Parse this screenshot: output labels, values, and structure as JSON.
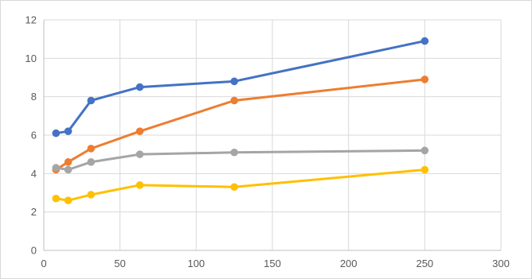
{
  "chart_data": {
    "type": "line",
    "title": "",
    "xlabel": "",
    "ylabel": "",
    "xlim": [
      0,
      300
    ],
    "ylim": [
      0,
      12
    ],
    "xticks": [
      0,
      50,
      100,
      150,
      200,
      250,
      300
    ],
    "yticks": [
      0,
      2,
      4,
      6,
      8,
      10,
      12
    ],
    "grid": true,
    "legend": "none",
    "x": [
      8,
      16,
      31,
      63,
      125,
      250
    ],
    "series": [
      {
        "color": "#4472C4",
        "values": [
          6.1,
          6.2,
          7.8,
          8.5,
          8.8,
          10.9
        ]
      },
      {
        "color": "#ED7D31",
        "values": [
          4.2,
          4.6,
          5.3,
          6.2,
          7.8,
          8.9
        ]
      },
      {
        "color": "#A5A5A5",
        "values": [
          4.3,
          4.2,
          4.6,
          5.0,
          5.1,
          5.2
        ]
      },
      {
        "color": "#FFC000",
        "values": [
          2.7,
          2.6,
          2.9,
          3.4,
          3.3,
          4.2
        ]
      }
    ],
    "gridline_color": "#d9d9d9",
    "axis_color": "#bfbfbf"
  }
}
